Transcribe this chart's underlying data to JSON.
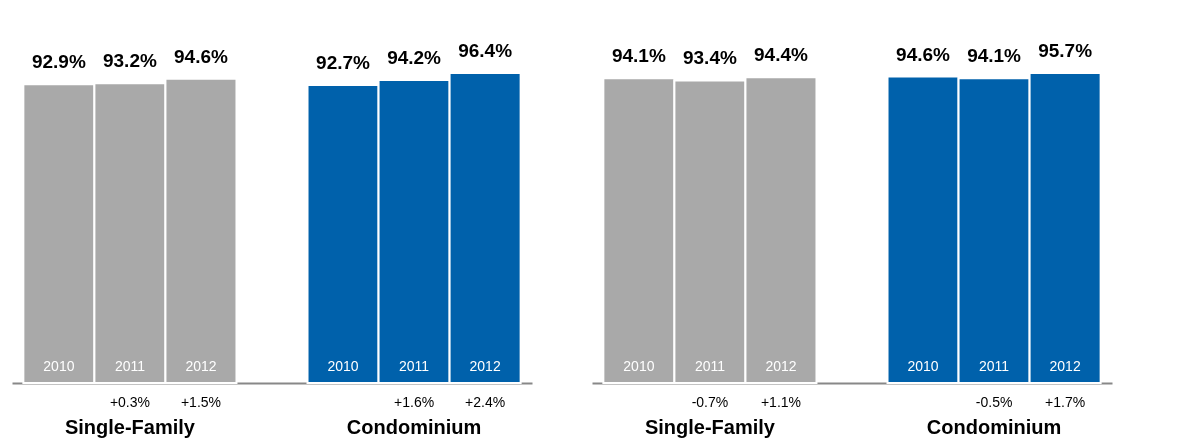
{
  "chart_data": [
    {
      "type": "bar",
      "categories": [
        "Single-Family",
        "Condominium"
      ],
      "series": [
        {
          "name": "2010",
          "colors": [
            "#a9a9a9",
            "#0061ab"
          ],
          "values": [
            92.9,
            92.7
          ],
          "value_labels": [
            "92.9%",
            "92.7%"
          ]
        },
        {
          "name": "2011",
          "colors": [
            "#a9a9a9",
            "#0061ab"
          ],
          "values": [
            93.2,
            94.2
          ],
          "value_labels": [
            "93.2%",
            "94.2%"
          ]
        },
        {
          "name": "2012",
          "colors": [
            "#a9a9a9",
            "#0061ab"
          ],
          "values": [
            94.6,
            96.4
          ],
          "value_labels": [
            "94.6%",
            "96.4%"
          ]
        }
      ],
      "annotations": [
        "+0.3%",
        "+1.5%",
        "+1.6%",
        "+2.4%"
      ]
    },
    {
      "type": "bar",
      "categories": [
        "Single-Family",
        "Condominium"
      ],
      "series": [
        {
          "name": "2010",
          "colors": [
            "#a9a9a9",
            "#0061ab"
          ],
          "values": [
            94.1,
            94.6
          ],
          "value_labels": [
            "94.1%",
            "94.6%"
          ]
        },
        {
          "name": "2011",
          "colors": [
            "#a9a9a9",
            "#0061ab"
          ],
          "values": [
            93.4,
            94.1
          ],
          "value_labels": [
            "93.4%",
            "94.1%"
          ]
        },
        {
          "name": "2012",
          "colors": [
            "#a9a9a9",
            "#0061ab"
          ],
          "values": [
            94.4,
            95.7
          ],
          "value_labels": [
            "94.4%",
            "95.7%"
          ]
        }
      ],
      "annotations": [
        "-0.7%",
        "+1.1%",
        "-0.5%",
        "+1.7%"
      ]
    }
  ]
}
